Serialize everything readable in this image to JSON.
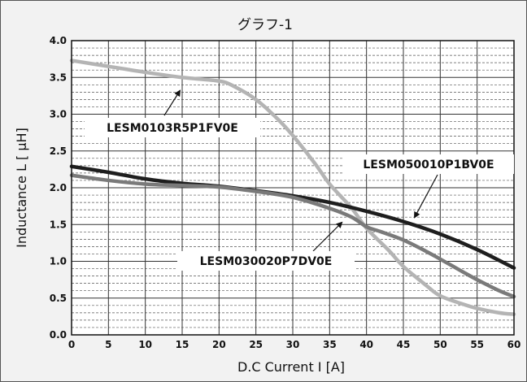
{
  "chart_data": {
    "type": "line",
    "title": "グラフ-1",
    "xlabel": "D.C Current  I [A]",
    "ylabel": "Inductance  L  [ μH]",
    "xlim": [
      0,
      60
    ],
    "ylim": [
      0,
      4.0
    ],
    "x_ticks": [
      "0",
      "5",
      "10",
      "15",
      "20",
      "25",
      "30",
      "35",
      "40",
      "45",
      "50",
      "55",
      "60"
    ],
    "y_ticks": [
      "0.0",
      "0.5",
      "1.0",
      "1.5",
      "2.0",
      "2.5",
      "3.0",
      "3.5",
      "4.0"
    ],
    "grid": true,
    "series": [
      {
        "name": "LESM0103R5P1FV0E",
        "color": "#b4b4b4",
        "x": [
          0,
          5,
          10,
          15,
          20,
          22,
          25,
          28,
          30,
          33,
          35,
          38,
          40,
          43,
          45,
          48,
          50,
          53,
          55,
          58,
          60
        ],
        "y": [
          3.73,
          3.65,
          3.57,
          3.5,
          3.45,
          3.38,
          3.2,
          2.93,
          2.71,
          2.33,
          2.05,
          1.72,
          1.45,
          1.15,
          0.93,
          0.68,
          0.53,
          0.42,
          0.36,
          0.3,
          0.28
        ]
      },
      {
        "name": "LESM050010P1BV0E",
        "color": "#1e1e1e",
        "x": [
          0,
          5,
          10,
          15,
          20,
          25,
          30,
          35,
          40,
          45,
          50,
          55,
          60
        ],
        "y": [
          2.29,
          2.21,
          2.12,
          2.06,
          2.02,
          1.96,
          1.89,
          1.8,
          1.68,
          1.54,
          1.37,
          1.16,
          0.91
        ]
      },
      {
        "name": "LESM030020P7DV0E",
        "color": "#7a7a7a",
        "x": [
          0,
          5,
          10,
          15,
          20,
          25,
          30,
          35,
          38,
          40,
          42,
          45,
          48,
          50,
          53,
          55,
          58,
          60
        ],
        "y": [
          2.17,
          2.1,
          2.05,
          2.03,
          2.01,
          1.95,
          1.87,
          1.72,
          1.6,
          1.47,
          1.4,
          1.29,
          1.14,
          1.03,
          0.86,
          0.75,
          0.6,
          0.52
        ]
      }
    ],
    "annotations": [
      {
        "text": "LESM0103R5P1FV0E",
        "series": "LESM0103R5P1FV0E"
      },
      {
        "text": "LESM050010P1BV0E",
        "series": "LESM050010P1BV0E"
      },
      {
        "text": "LESM030020P7DV0E",
        "series": "LESM030020P7DV0E"
      }
    ]
  }
}
